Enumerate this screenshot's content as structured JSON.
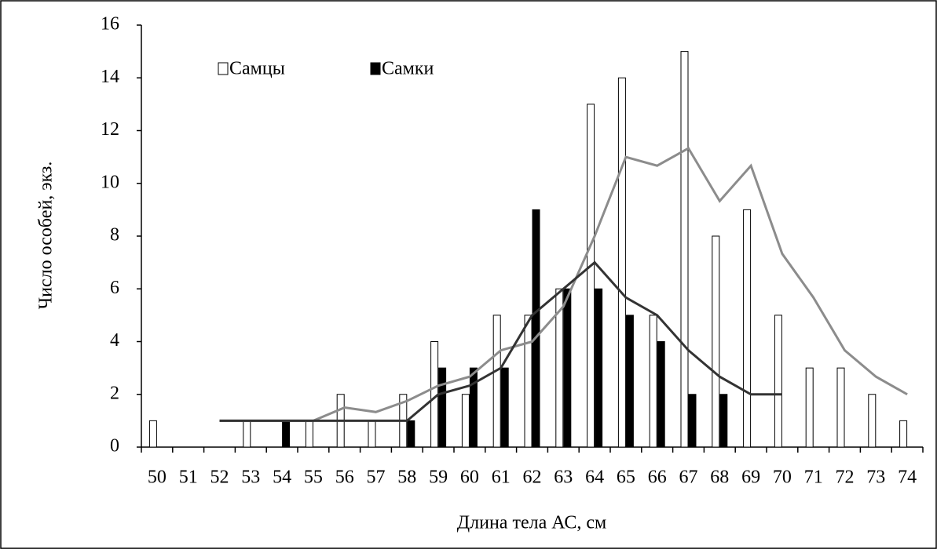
{
  "chart_data": {
    "type": "bar",
    "xlabel": "Длина тела АС, см",
    "ylabel": "Число  особей, экз.",
    "categories": [
      "50",
      "51",
      "52",
      "53",
      "54",
      "55",
      "56",
      "57",
      "58",
      "59",
      "60",
      "61",
      "62",
      "63",
      "64",
      "65",
      "66",
      "67",
      "68",
      "69",
      "70",
      "71",
      "72",
      "73",
      "74"
    ],
    "series": [
      {
        "name": "Самцы",
        "color": "#ffffff",
        "values": [
          1,
          0,
          0,
          1,
          0,
          1,
          2,
          1,
          2,
          4,
          2,
          5,
          5,
          6,
          13,
          14,
          5,
          15,
          8,
          9,
          5,
          3,
          3,
          2,
          1
        ]
      },
      {
        "name": "Самки",
        "color": "#000000",
        "values": [
          0,
          0,
          0,
          0,
          1,
          0,
          0,
          0,
          1,
          3,
          3,
          3,
          9,
          6,
          6,
          5,
          4,
          2,
          2,
          0,
          0,
          0,
          0,
          0,
          0
        ]
      },
      {
        "type": "line",
        "color": "#8c8c8c",
        "values": [
          null,
          null,
          1,
          1,
          1,
          1,
          1.5,
          1.33,
          1.75,
          2.33,
          2.67,
          3.67,
          4,
          5.33,
          8,
          11,
          10.67,
          11.33,
          9.33,
          10.67,
          7.33,
          5.67,
          3.67,
          2.67,
          2
        ]
      },
      {
        "type": "line",
        "color": "#333333",
        "values": [
          null,
          null,
          1,
          1,
          1,
          1,
          1,
          1,
          1,
          2,
          2.33,
          3,
          5,
          6,
          7,
          5.67,
          5,
          3.67,
          2.67,
          2,
          2,
          null,
          null,
          null,
          null
        ]
      }
    ],
    "ylim": [
      0,
      16
    ],
    "yticks": [
      0,
      2,
      4,
      6,
      8,
      10,
      12,
      14,
      16
    ]
  }
}
